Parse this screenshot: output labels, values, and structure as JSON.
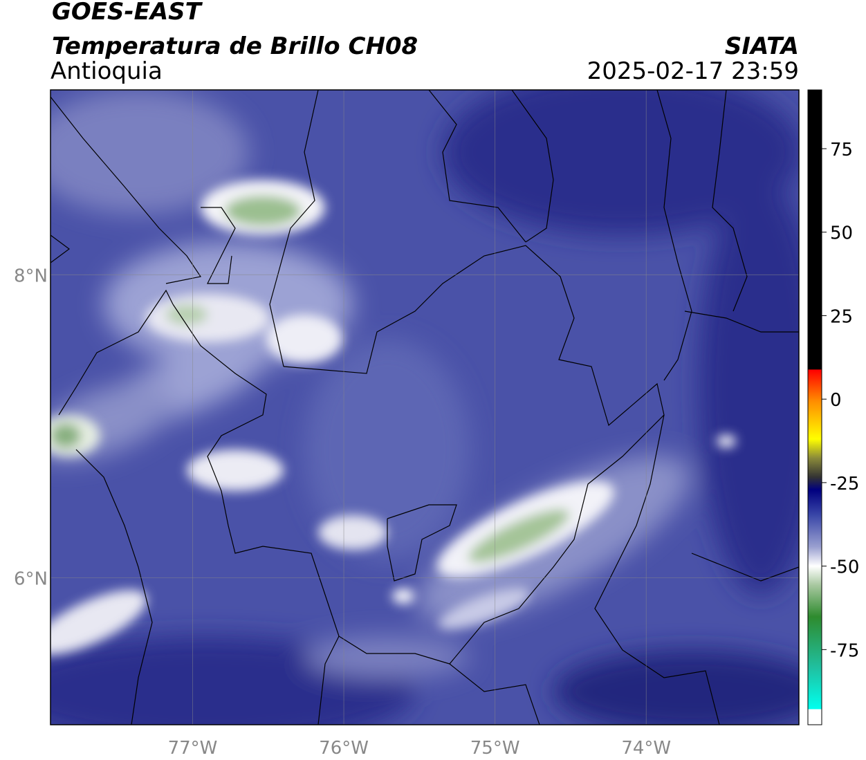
{
  "header": {
    "title": "GOES-EAST",
    "subtitle": "Temperatura de Brillo CH08",
    "region": "Antioquia",
    "source": "SIATA",
    "datetime": "2025-02-17 23:59"
  },
  "map": {
    "lon_range": [
      -77.94,
      -72.99
    ],
    "lat_range": [
      5.03,
      9.22
    ],
    "lon_ticks": [
      {
        "value": -77,
        "label": "77°W"
      },
      {
        "value": -76,
        "label": "76°W"
      },
      {
        "value": -75,
        "label": "75°W"
      },
      {
        "value": -74,
        "label": "74°W"
      }
    ],
    "lat_ticks": [
      {
        "value": 8,
        "label": "8°N"
      },
      {
        "value": 6,
        "label": "6°N"
      }
    ]
  },
  "colorbar": {
    "range": [
      -97.5,
      92.6
    ],
    "ticks": [
      75,
      50,
      25,
      0,
      -25,
      -50,
      -75
    ]
  }
}
